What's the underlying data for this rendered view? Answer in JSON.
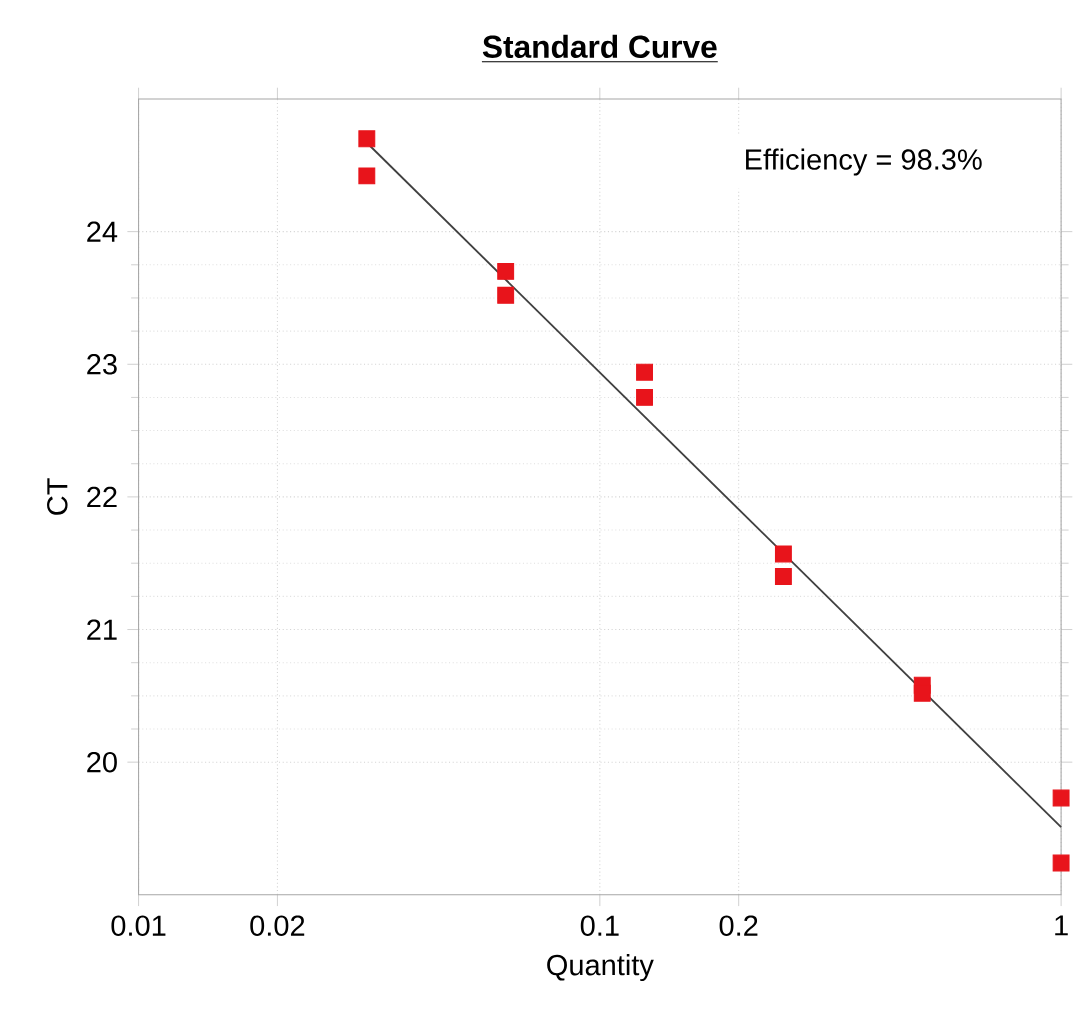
{
  "chart_data": {
    "type": "scatter",
    "title": "Standard Curve",
    "xlabel": "Quantity",
    "ylabel": "CT",
    "log": "x",
    "grid": true,
    "marker": "square",
    "xlim": [
      0.01,
      1
    ],
    "xticks": [
      0.01,
      0.02,
      0.1,
      0.2,
      1
    ],
    "ylim": [
      19,
      25
    ],
    "yticks": [
      20,
      21,
      22,
      23,
      24
    ],
    "annotations": [
      "Efficiency = 98.3%"
    ],
    "series": [
      {
        "color": "#e8141b",
        "x": [
          0.03125,
          0.03125,
          0.0625,
          0.0625,
          0.125,
          0.125,
          0.25,
          0.25,
          0.5,
          0.5,
          1,
          1
        ],
        "values": [
          24.7,
          24.42,
          23.7,
          23.52,
          22.94,
          22.75,
          21.57,
          21.4,
          20.58,
          20.52,
          19.73,
          19.24
        ]
      },
      {
        "type": "line",
        "marker": "none",
        "color": "#404040",
        "x": [
          0.03125,
          1
        ],
        "values": [
          24.67,
          19.51
        ]
      }
    ]
  }
}
